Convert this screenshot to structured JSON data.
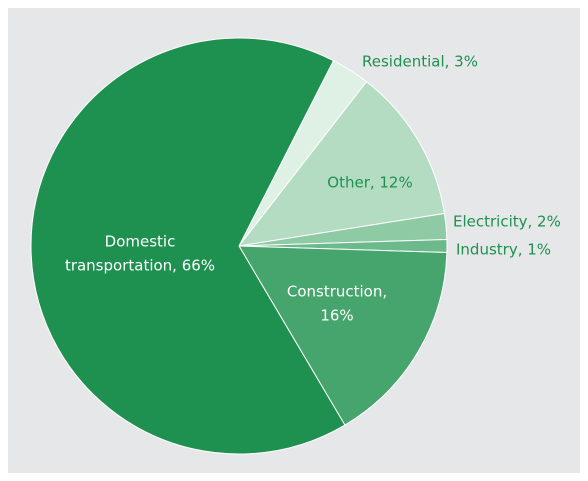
{
  "chart_data": {
    "type": "pie",
    "labels": [
      [
        "Residential, 3%"
      ],
      [
        "Other, 12%"
      ],
      [
        "Electricity, 2%"
      ],
      [
        "Industry, 1%"
      ],
      [
        "Construction,",
        "16%"
      ],
      [
        "Domestic",
        "transportation, 66%"
      ]
    ],
    "values": [
      3,
      12,
      2,
      1,
      16,
      66
    ],
    "colors": [
      "#dff0e4",
      "#b4dcc3",
      "#8ecba5",
      "#6cba8b",
      "#46a56d",
      "#1e9150"
    ]
  }
}
